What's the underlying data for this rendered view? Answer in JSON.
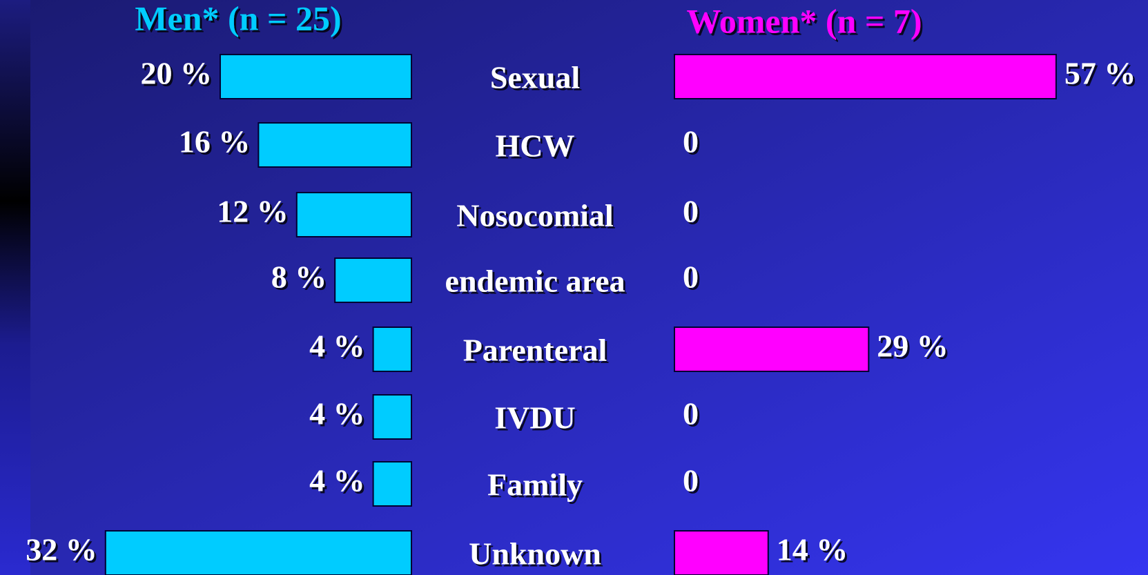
{
  "chart_data": {
    "type": "bar",
    "categories": [
      "Sexual",
      "HCW",
      "Nosocomial",
      "endemic area",
      "Parenteral",
      "IVDU",
      "Family",
      "Unknown"
    ],
    "series": [
      {
        "name": "Men* (n = 25)",
        "color": "#00ccff",
        "values": [
          20,
          16,
          12,
          8,
          4,
          4,
          4,
          32
        ],
        "value_labels": [
          "20 %",
          "16 %",
          "12 %",
          "8 %",
          "4 %",
          "4 %",
          "4 %",
          "32 %"
        ]
      },
      {
        "name": "Women* (n = 7)",
        "color": "#ff00ff",
        "values": [
          57,
          0,
          0,
          0,
          29,
          0,
          0,
          14
        ],
        "value_labels": [
          "57 %",
          "0",
          "0",
          "0",
          "29 %",
          "0",
          "0",
          "14 %"
        ]
      }
    ]
  }
}
